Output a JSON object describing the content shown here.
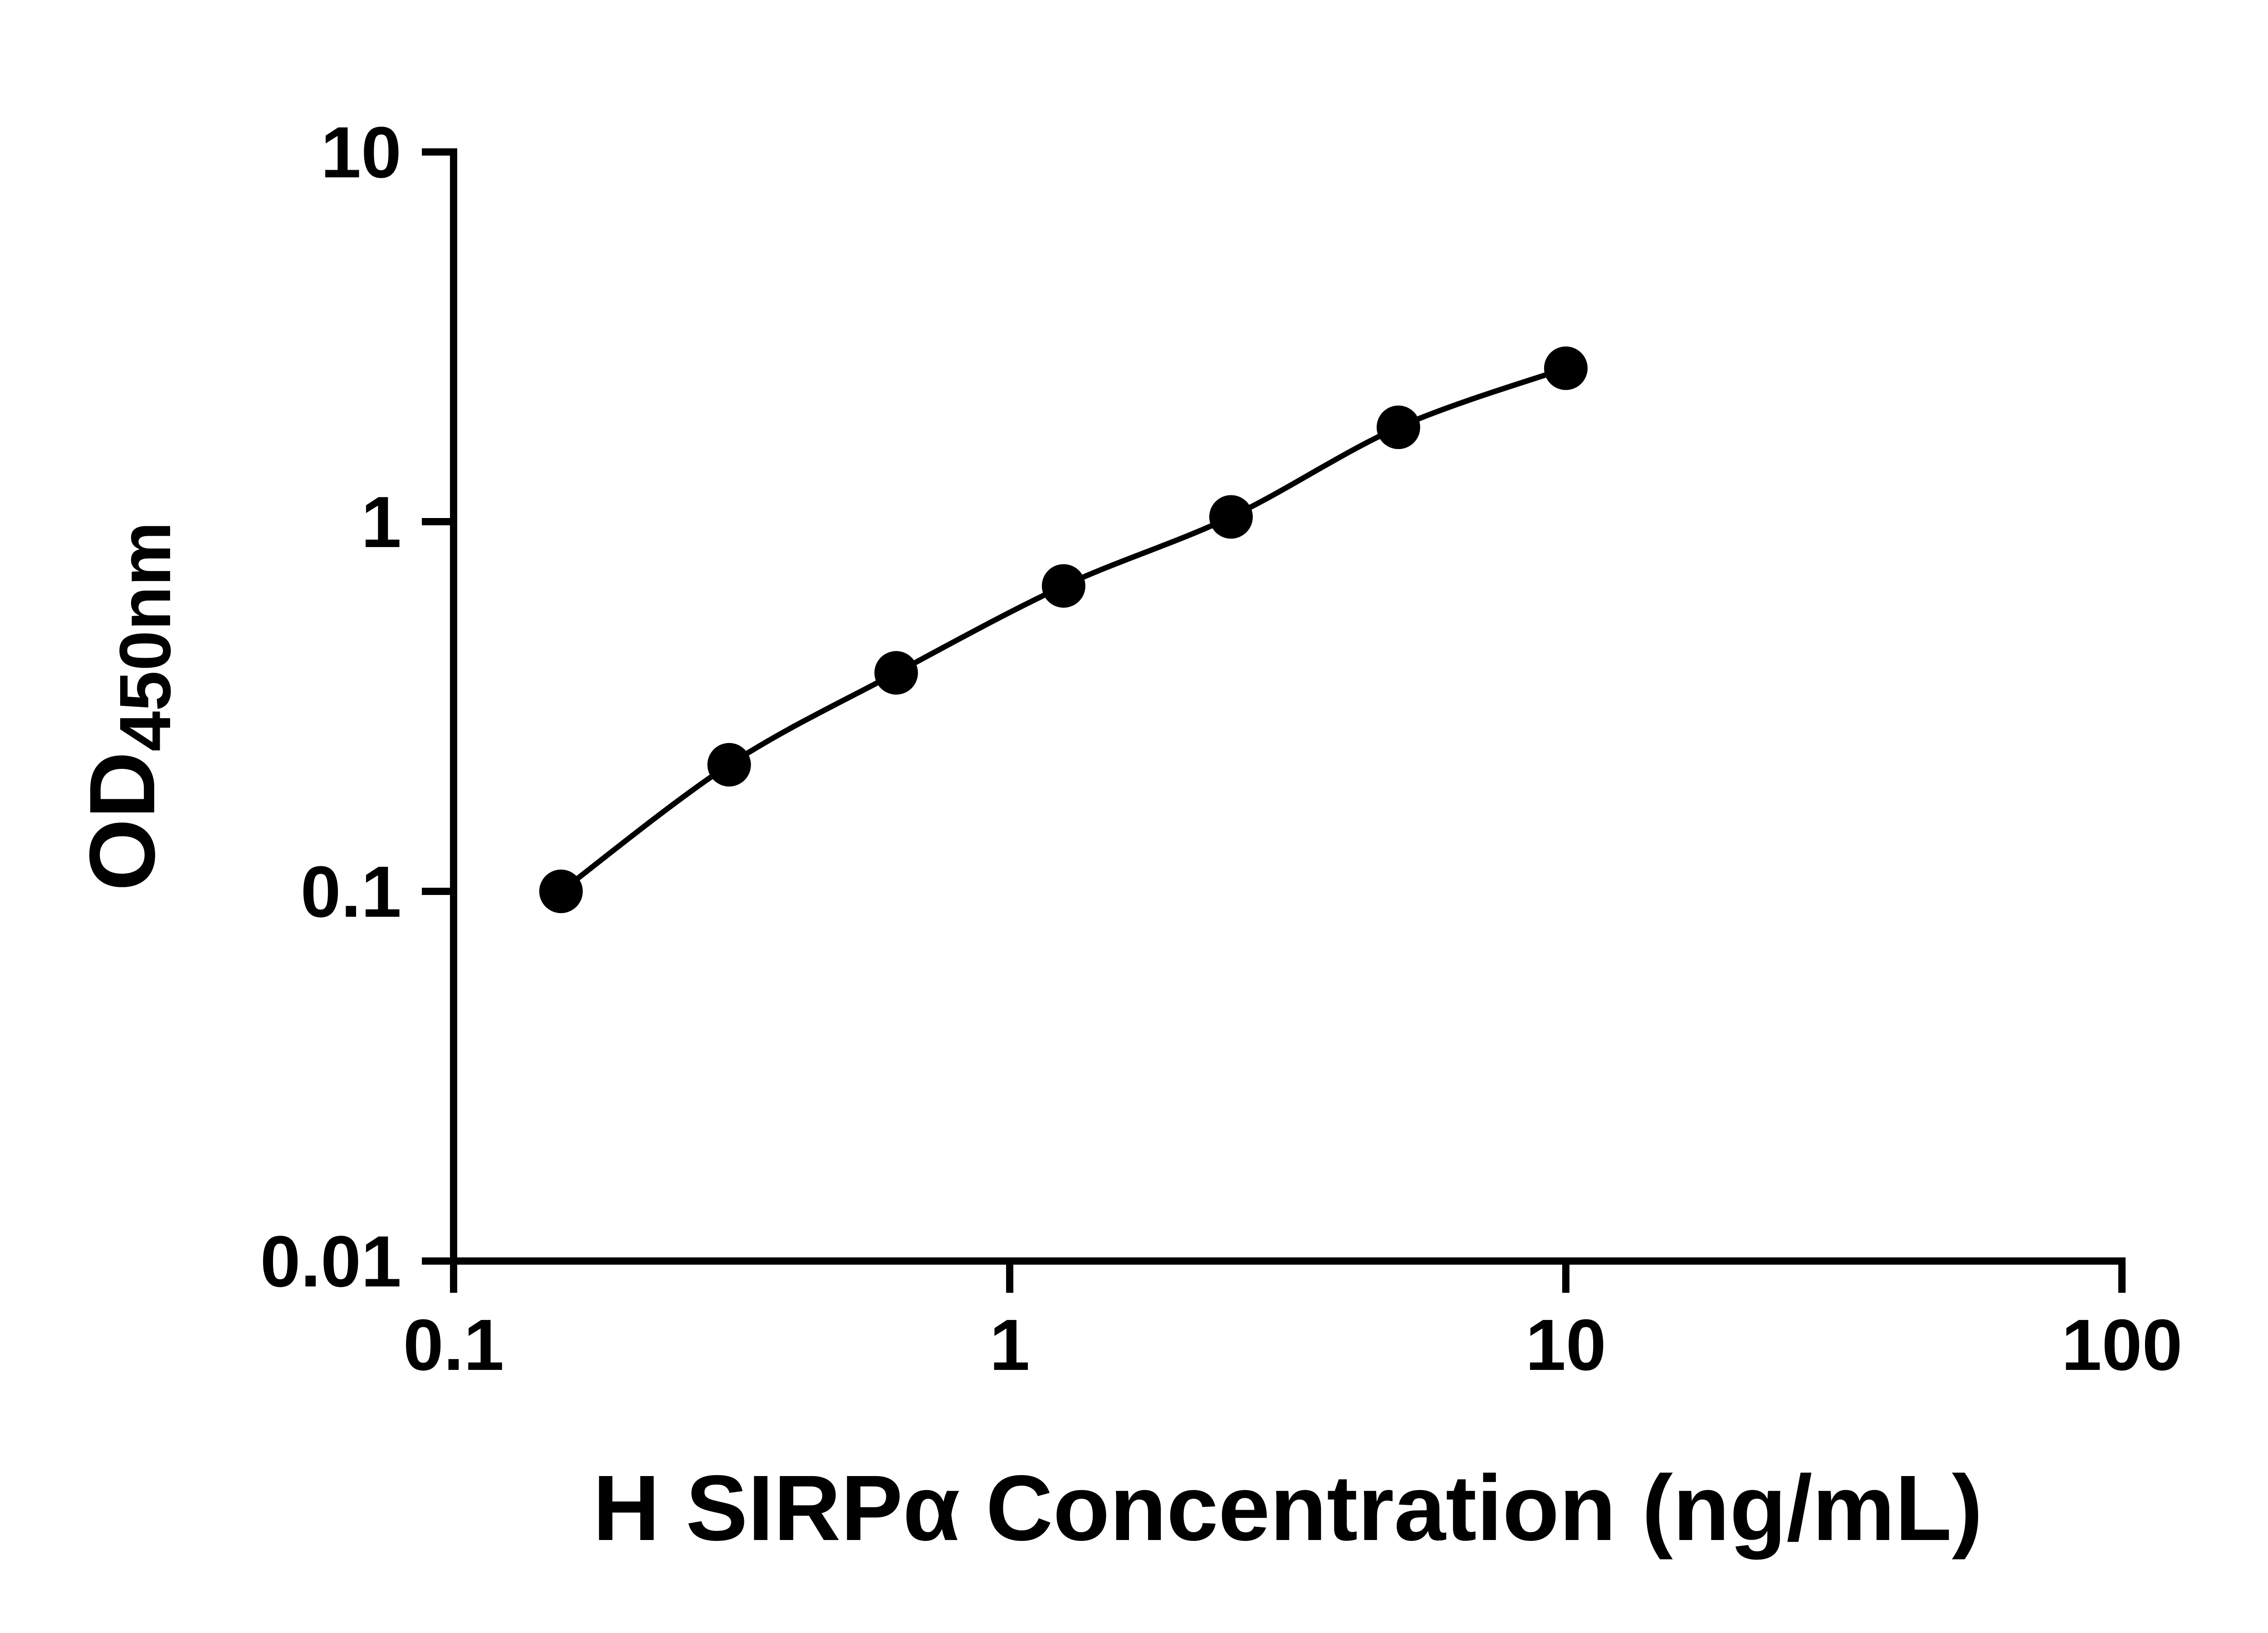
{
  "chart_data": {
    "type": "scatter",
    "title": "",
    "xlabel": "H SIRPα Concentration (ng/mL)",
    "ylabel_main": "OD",
    "ylabel_sub": "450nm",
    "x_scale": "log",
    "y_scale": "log",
    "xlim": [
      0.1,
      100
    ],
    "ylim": [
      0.01,
      10
    ],
    "x_ticks": [
      0.1,
      1,
      10,
      100
    ],
    "x_tick_labels": [
      "0.1",
      "1",
      "10",
      "100"
    ],
    "y_ticks": [
      0.01,
      0.1,
      1,
      10
    ],
    "y_tick_labels": [
      "0.01",
      "0.1",
      "1",
      "10"
    ],
    "grid": false,
    "legend": false,
    "background": "#ffffff",
    "axis_color": "#000000",
    "series": [
      {
        "x": [
          0.156,
          0.313,
          0.625,
          1.25,
          2.5,
          5,
          10
        ],
        "y": [
          0.1,
          0.22,
          0.39,
          0.67,
          1.03,
          1.8,
          2.6
        ],
        "marker": "circle",
        "line": "smooth",
        "color": "#000000"
      }
    ]
  }
}
